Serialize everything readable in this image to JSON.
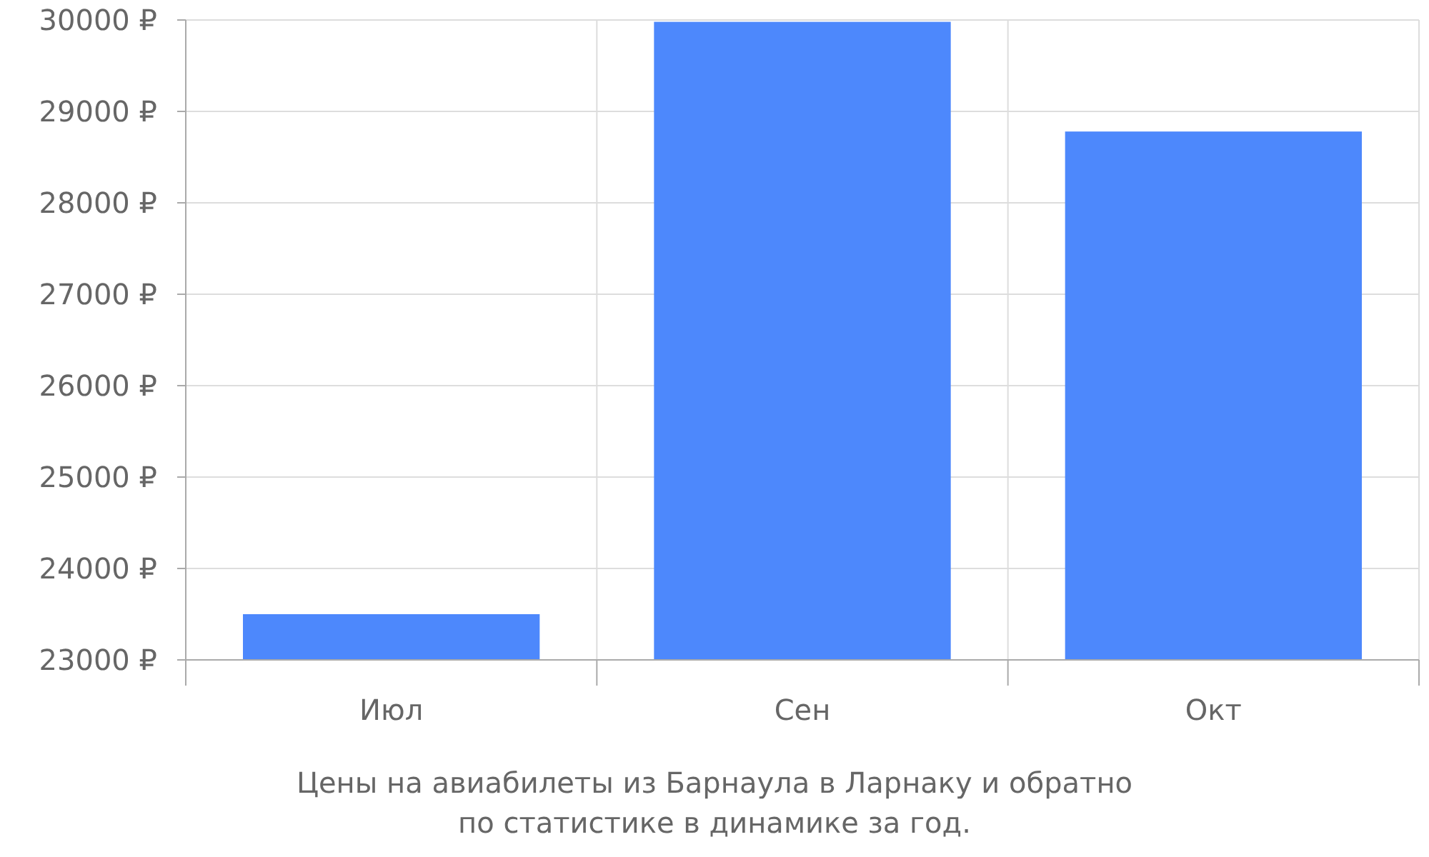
{
  "chart_data": {
    "type": "bar",
    "categories": [
      "Июл",
      "Сен",
      "Окт"
    ],
    "values": [
      23500,
      29980,
      28780
    ],
    "color": "#4d88fc",
    "ylim": [
      23000,
      30000
    ],
    "yticks": [
      {
        "value": 23000,
        "label": "23000 ₽"
      },
      {
        "value": 24000,
        "label": "24000 ₽"
      },
      {
        "value": 25000,
        "label": "25000 ₽"
      },
      {
        "value": 26000,
        "label": "26000 ₽"
      },
      {
        "value": 27000,
        "label": "27000 ₽"
      },
      {
        "value": 28000,
        "label": "28000 ₽"
      },
      {
        "value": 29000,
        "label": "29000 ₽"
      },
      {
        "value": 30000,
        "label": "30000 ₽"
      }
    ],
    "grid": true,
    "annotations": [
      "Цены на авиабилеты из Барнаула в Ларнаку и обратно",
      "по статистике в динамике за год."
    ]
  }
}
